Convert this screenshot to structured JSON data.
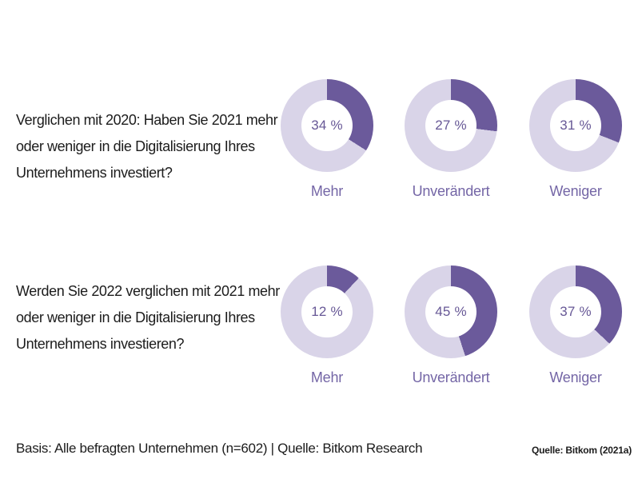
{
  "colors": {
    "accent": "#6b5a9b",
    "track": "#d9d4e8",
    "percent_text": "#675896",
    "label_text": "#7466a6",
    "body_text": "#1c1c1c",
    "background": "#ffffff"
  },
  "chart_data": [
    {
      "type": "pie",
      "subtype": "donut",
      "question": "Verglichen mit 2020: Haben Sie 2021 mehr oder weniger in die Digitalisierung Ihres Unternehmens investiert?",
      "question_lines": [
        "Verglichen mit 2020: Haben Sie 2021 mehr",
        "oder weniger in die Digitalisierung Ihres",
        "Unternehmens investiert?"
      ],
      "categories": [
        "Mehr",
        "Unverändert",
        "Weniger"
      ],
      "values": [
        34,
        27,
        31
      ],
      "display_values": [
        "34 %",
        "27 %",
        "31 %"
      ],
      "unit": "%",
      "start_angle_deg": 0,
      "direction": "clockwise",
      "legend_position": "below-each-donut"
    },
    {
      "type": "pie",
      "subtype": "donut",
      "question": "Werden Sie 2022 verglichen mit 2021 mehr oder weniger in die Digitalisierung Ihres Unternehmens investieren?",
      "question_lines": [
        "Werden Sie 2022 verglichen mit 2021 mehr",
        "oder weniger in die Digitalisierung Ihres",
        "Unternehmens investieren?"
      ],
      "categories": [
        "Mehr",
        "Unverändert",
        "Weniger"
      ],
      "values": [
        12,
        45,
        37
      ],
      "display_values": [
        "12 %",
        "45 %",
        "37 %"
      ],
      "unit": "%",
      "start_angle_deg": 0,
      "direction": "clockwise",
      "legend_position": "below-each-donut"
    }
  ],
  "footer": {
    "basis": "Basis: Alle befragten Unternehmen (n=602) | Quelle: Bitkom Research",
    "source": "Quelle: Bitkom (2021a)"
  }
}
